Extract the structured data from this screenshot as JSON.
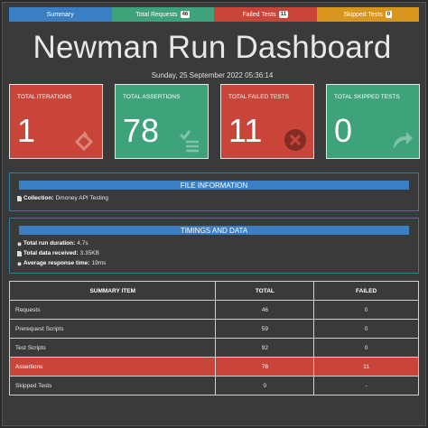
{
  "nav": {
    "tabs": [
      {
        "label": "Summary",
        "badge": "",
        "color": "#3a7fc4"
      },
      {
        "label": "Total Requests",
        "badge": "46",
        "color": "#3ea37a"
      },
      {
        "label": "Failed Tests",
        "badge": "11",
        "color": "#c9453a"
      },
      {
        "label": "Skipped Tests",
        "badge": "0",
        "color": "#d9961e"
      }
    ]
  },
  "header": {
    "title": "Newman Run Dashboard",
    "date": "Sunday, 25 September 2022 05:36:14"
  },
  "cards": [
    {
      "label": "TOTAL ITERATIONS",
      "value": "1",
      "color": "#c9453a",
      "icon": "repeat-icon"
    },
    {
      "label": "TOTAL ASSERTIONS",
      "value": "78",
      "color": "#3ea37a",
      "icon": "list-check-icon"
    },
    {
      "label": "TOTAL FAILED TESTS",
      "value": "11",
      "color": "#c9453a",
      "icon": "times-circle-icon"
    },
    {
      "label": "TOTAL SKIPPED TESTS",
      "value": "0",
      "color": "#3ea37a",
      "icon": "share-icon"
    }
  ],
  "file_info": {
    "header": "FILE INFORMATION",
    "collection_label": "Collection:",
    "collection_value": "Dmoney API Testing"
  },
  "timings": {
    "header": "TIMINGS AND DATA",
    "rows": [
      {
        "label": "Total run duration:",
        "value": "4.7s"
      },
      {
        "label": "Total data received:",
        "value": "3.35KB"
      },
      {
        "label": "Average response time:",
        "value": "19ms"
      }
    ]
  },
  "summary_table": {
    "headers": [
      "SUMMARY ITEM",
      "TOTAL",
      "FAILED"
    ],
    "rows": [
      {
        "item": "Requests",
        "total": "46",
        "failed": "0",
        "highlight": false
      },
      {
        "item": "Prerequest Scripts",
        "total": "59",
        "failed": "0",
        "highlight": false
      },
      {
        "item": "Test Scripts",
        "total": "92",
        "failed": "0",
        "highlight": false
      },
      {
        "item": "Assertions",
        "total": "78",
        "failed": "11",
        "highlight": true
      },
      {
        "item": "Skipped Tests",
        "total": "0",
        "failed": "-",
        "highlight": false
      }
    ]
  }
}
